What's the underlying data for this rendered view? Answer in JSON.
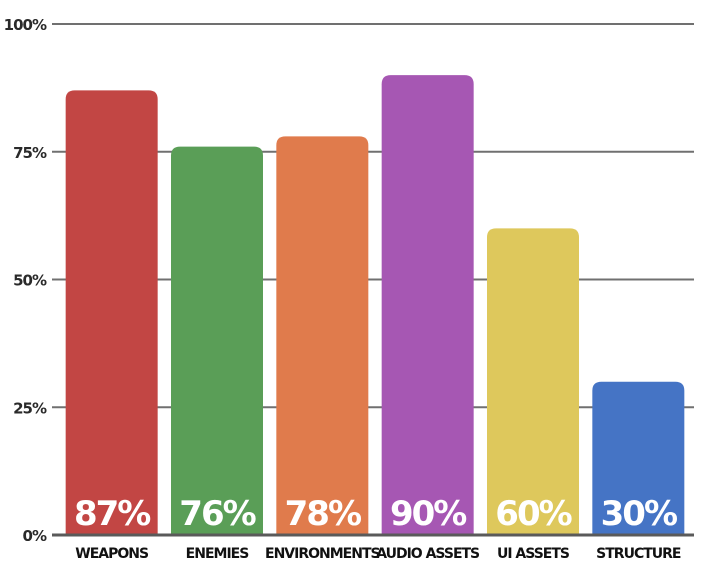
{
  "chart_data": {
    "type": "bar",
    "categories": [
      "WEAPONS",
      "ENEMIES",
      "ENVIRONMENTS",
      "AUDIO ASSETS",
      "UI ASSETS",
      "STRUCTURE"
    ],
    "values": [
      87,
      76,
      78,
      90,
      60,
      30
    ],
    "value_labels": [
      "87%",
      "76%",
      "78%",
      "90%",
      "60%",
      "30%"
    ],
    "colors": [
      "#c24644",
      "#5a9e57",
      "#e07b4c",
      "#a657b3",
      "#dec85c",
      "#4574c5"
    ],
    "ylim": [
      0,
      100
    ],
    "y_ticks": [
      0,
      25,
      50,
      75,
      100
    ],
    "y_tick_labels": [
      "0%",
      "25%",
      "50%",
      "75%",
      "100%"
    ],
    "grid": true,
    "title": "",
    "xlabel": "",
    "ylabel": ""
  }
}
